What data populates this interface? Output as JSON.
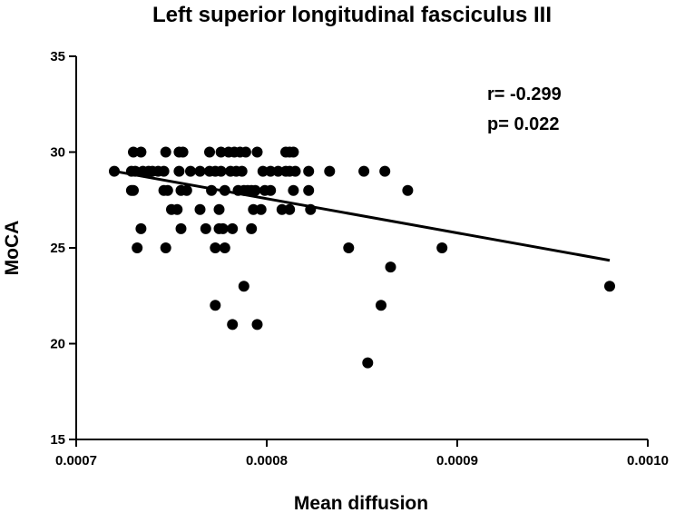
{
  "chart_data": {
    "type": "scatter",
    "title": "Left superior longitudinal fasciculus III",
    "xlabel": "Mean diffusion",
    "ylabel": "MoCA",
    "xlim": [
      0.0007,
      0.001
    ],
    "ylim": [
      15,
      35
    ],
    "x_ticks": [
      "0.0007",
      "0.0008",
      "0.0009",
      "0.0010"
    ],
    "y_ticks": [
      "15",
      "20",
      "25",
      "30",
      "35"
    ],
    "grid": false,
    "legend": "none",
    "annotations": [
      "r= -0.299",
      "p= 0.022"
    ],
    "regression_line": {
      "x": [
        0.00072,
        0.00098
      ],
      "y": [
        29.0,
        24.35
      ]
    },
    "points": [
      {
        "x": 0.00072,
        "y": 29
      },
      {
        "x": 0.00073,
        "y": 30
      },
      {
        "x": 0.000734,
        "y": 30
      },
      {
        "x": 0.000729,
        "y": 29
      },
      {
        "x": 0.000731,
        "y": 29
      },
      {
        "x": 0.000735,
        "y": 29
      },
      {
        "x": 0.000738,
        "y": 29
      },
      {
        "x": 0.00074,
        "y": 29
      },
      {
        "x": 0.000743,
        "y": 29
      },
      {
        "x": 0.000746,
        "y": 29
      },
      {
        "x": 0.000729,
        "y": 28
      },
      {
        "x": 0.00073,
        "y": 28
      },
      {
        "x": 0.000734,
        "y": 26
      },
      {
        "x": 0.000732,
        "y": 25
      },
      {
        "x": 0.000747,
        "y": 30
      },
      {
        "x": 0.000754,
        "y": 30
      },
      {
        "x": 0.000756,
        "y": 30
      },
      {
        "x": 0.000746,
        "y": 28
      },
      {
        "x": 0.000748,
        "y": 28
      },
      {
        "x": 0.000755,
        "y": 28
      },
      {
        "x": 0.000758,
        "y": 28
      },
      {
        "x": 0.00075,
        "y": 27
      },
      {
        "x": 0.000753,
        "y": 27
      },
      {
        "x": 0.000747,
        "y": 25
      },
      {
        "x": 0.000755,
        "y": 26
      },
      {
        "x": 0.000754,
        "y": 29
      },
      {
        "x": 0.00076,
        "y": 29
      },
      {
        "x": 0.000765,
        "y": 29
      },
      {
        "x": 0.00077,
        "y": 29
      },
      {
        "x": 0.000773,
        "y": 29
      },
      {
        "x": 0.000776,
        "y": 29
      },
      {
        "x": 0.000765,
        "y": 27
      },
      {
        "x": 0.000768,
        "y": 26
      },
      {
        "x": 0.00077,
        "y": 30
      },
      {
        "x": 0.000776,
        "y": 30
      },
      {
        "x": 0.000771,
        "y": 28
      },
      {
        "x": 0.000775,
        "y": 27
      },
      {
        "x": 0.000773,
        "y": 25
      },
      {
        "x": 0.000775,
        "y": 26
      },
      {
        "x": 0.000777,
        "y": 26
      },
      {
        "x": 0.000778,
        "y": 25
      },
      {
        "x": 0.000773,
        "y": 22
      },
      {
        "x": 0.000778,
        "y": 28
      },
      {
        "x": 0.00078,
        "y": 30
      },
      {
        "x": 0.000783,
        "y": 30
      },
      {
        "x": 0.000786,
        "y": 30
      },
      {
        "x": 0.000789,
        "y": 30
      },
      {
        "x": 0.000795,
        "y": 30
      },
      {
        "x": 0.000781,
        "y": 29
      },
      {
        "x": 0.000784,
        "y": 29
      },
      {
        "x": 0.000787,
        "y": 29
      },
      {
        "x": 0.000785,
        "y": 28
      },
      {
        "x": 0.000788,
        "y": 28
      },
      {
        "x": 0.00079,
        "y": 28
      },
      {
        "x": 0.000792,
        "y": 28
      },
      {
        "x": 0.000794,
        "y": 28
      },
      {
        "x": 0.000782,
        "y": 26
      },
      {
        "x": 0.000792,
        "y": 26
      },
      {
        "x": 0.000788,
        "y": 23
      },
      {
        "x": 0.000782,
        "y": 21
      },
      {
        "x": 0.000795,
        "y": 21
      },
      {
        "x": 0.000793,
        "y": 27
      },
      {
        "x": 0.000797,
        "y": 27
      },
      {
        "x": 0.000799,
        "y": 28
      },
      {
        "x": 0.000798,
        "y": 29
      },
      {
        "x": 0.000802,
        "y": 29
      },
      {
        "x": 0.000806,
        "y": 29
      },
      {
        "x": 0.00081,
        "y": 29
      },
      {
        "x": 0.000812,
        "y": 29
      },
      {
        "x": 0.000815,
        "y": 29
      },
      {
        "x": 0.000802,
        "y": 28
      },
      {
        "x": 0.000814,
        "y": 28
      },
      {
        "x": 0.00081,
        "y": 30
      },
      {
        "x": 0.000812,
        "y": 30
      },
      {
        "x": 0.000814,
        "y": 30
      },
      {
        "x": 0.000808,
        "y": 27
      },
      {
        "x": 0.000812,
        "y": 27
      },
      {
        "x": 0.000822,
        "y": 29
      },
      {
        "x": 0.000822,
        "y": 28
      },
      {
        "x": 0.000823,
        "y": 27
      },
      {
        "x": 0.000833,
        "y": 29
      },
      {
        "x": 0.000843,
        "y": 25
      },
      {
        "x": 0.000851,
        "y": 29
      },
      {
        "x": 0.000862,
        "y": 29
      },
      {
        "x": 0.000874,
        "y": 28
      },
      {
        "x": 0.000865,
        "y": 24
      },
      {
        "x": 0.00086,
        "y": 22
      },
      {
        "x": 0.000853,
        "y": 19
      },
      {
        "x": 0.000892,
        "y": 25
      },
      {
        "x": 0.00098,
        "y": 23
      }
    ]
  }
}
